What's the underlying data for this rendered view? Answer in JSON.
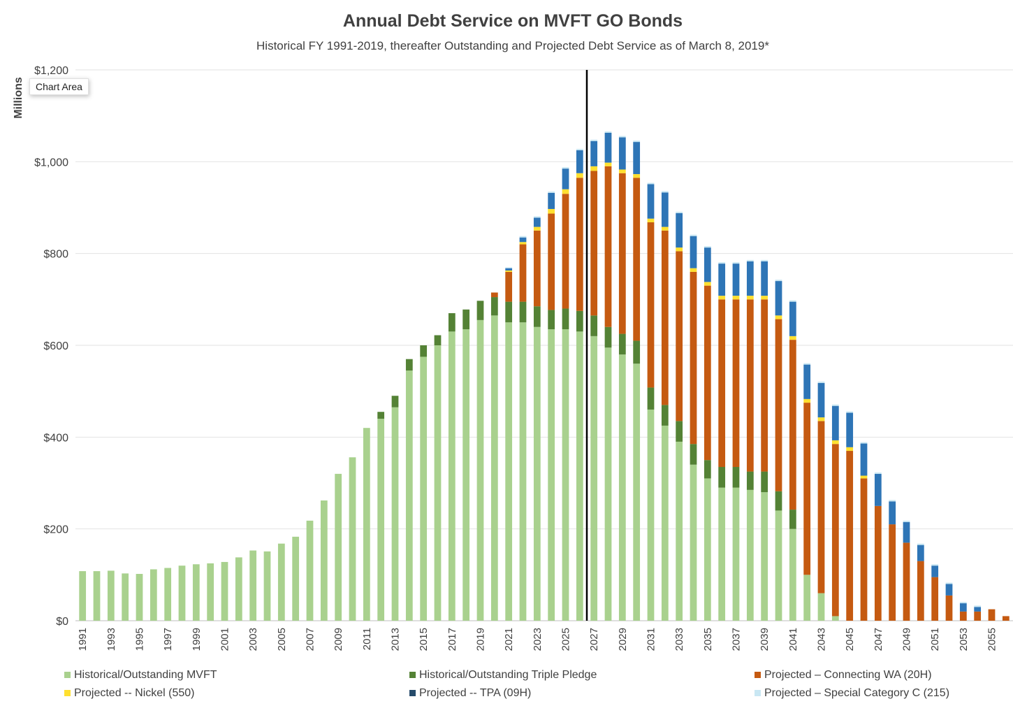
{
  "chart_data": {
    "type": "bar",
    "stacked": true,
    "title": "Annual Debt Service on MVFT GO Bonds",
    "subtitle": "Historical FY 1991-2019, thereafter Outstanding and Projected Debt Service as of March 8, 2019*",
    "ylabel": "Millions",
    "xlabel": "",
    "ylim": [
      0,
      1200
    ],
    "yticks": [
      0,
      200,
      400,
      600,
      800,
      1000,
      1200
    ],
    "ytick_labels": [
      "$0",
      "$200",
      "$400",
      "$600",
      "$800",
      "$1,000",
      "$1,200"
    ],
    "grid": true,
    "legend_position": "bottom",
    "categories": [
      1991,
      1992,
      1993,
      1994,
      1995,
      1996,
      1997,
      1998,
      1999,
      2000,
      2001,
      2002,
      2003,
      2004,
      2005,
      2006,
      2007,
      2008,
      2009,
      2010,
      2011,
      2012,
      2013,
      2014,
      2015,
      2016,
      2017,
      2018,
      2019,
      2020,
      2021,
      2022,
      2023,
      2024,
      2025,
      2026,
      2027,
      2028,
      2029,
      2030,
      2031,
      2032,
      2033,
      2034,
      2035,
      2036,
      2037,
      2038,
      2039,
      2040,
      2041,
      2042,
      2043,
      2044,
      2045,
      2046,
      2047,
      2048,
      2049,
      2050,
      2051,
      2052,
      2053,
      2054,
      2055,
      2056
    ],
    "xtick_labels": [
      "1991",
      "",
      "1993",
      "",
      "1995",
      "",
      "1997",
      "",
      "1999",
      "",
      "2001",
      "",
      "2003",
      "",
      "2005",
      "",
      "2007",
      "",
      "2009",
      "",
      "2011",
      "",
      "2013",
      "",
      "2015",
      "",
      "2017",
      "",
      "2019",
      "",
      "2021",
      "",
      "2023",
      "",
      "2025",
      "",
      "2027",
      "",
      "2029",
      "",
      "2031",
      "",
      "2033",
      "",
      "2035",
      "",
      "2037",
      "",
      "2039",
      "",
      "2041",
      "",
      "2043",
      "",
      "2045",
      "",
      "2047",
      "",
      "2049",
      "",
      "2051",
      "",
      "2053",
      "",
      "2055",
      ""
    ],
    "divider_after": 2026,
    "series": [
      {
        "name": "Historical/Outstanding MVFT",
        "color": "#a9d18e",
        "values": [
          108,
          108,
          109,
          103,
          102,
          112,
          115,
          120,
          123,
          125,
          128,
          138,
          153,
          151,
          168,
          183,
          218,
          262,
          320,
          356,
          420,
          440,
          465,
          545,
          575,
          600,
          630,
          635,
          655,
          665,
          650,
          650,
          640,
          635,
          635,
          630,
          620,
          595,
          580,
          560,
          460,
          425,
          390,
          340,
          310,
          290,
          290,
          285,
          280,
          240,
          200,
          100,
          60,
          10,
          0,
          0,
          0,
          0,
          0,
          0,
          0,
          0,
          0,
          0,
          0,
          0
        ]
      },
      {
        "name": "Historical/Outstanding Triple Pledge",
        "color": "#548235",
        "values": [
          0,
          0,
          0,
          0,
          0,
          0,
          0,
          0,
          0,
          0,
          0,
          0,
          0,
          0,
          0,
          0,
          0,
          0,
          0,
          0,
          0,
          15,
          25,
          25,
          25,
          22,
          40,
          43,
          42,
          40,
          45,
          45,
          45,
          42,
          45,
          45,
          45,
          45,
          45,
          50,
          48,
          45,
          45,
          45,
          40,
          45,
          45,
          40,
          45,
          42,
          42,
          0,
          0,
          0,
          0,
          0,
          0,
          0,
          0,
          0,
          0,
          0,
          0,
          0,
          0,
          0
        ]
      },
      {
        "name": "Projected -- Connecting WA (20H)",
        "color": "#c55a11",
        "values": [
          0,
          0,
          0,
          0,
          0,
          0,
          0,
          0,
          0,
          0,
          0,
          0,
          0,
          0,
          0,
          0,
          0,
          0,
          0,
          0,
          0,
          0,
          0,
          0,
          0,
          0,
          0,
          0,
          0,
          10,
          65,
          125,
          165,
          210,
          250,
          290,
          315,
          350,
          350,
          355,
          360,
          380,
          370,
          375,
          380,
          365,
          365,
          375,
          375,
          375,
          370,
          375,
          375,
          375,
          370,
          310,
          250,
          210,
          170,
          130,
          95,
          55,
          20,
          20,
          25,
          10
        ]
      },
      {
        "name": "Projected -- Nickel (550)",
        "color": "#ffe030",
        "values": [
          0,
          0,
          0,
          0,
          0,
          0,
          0,
          0,
          0,
          0,
          0,
          0,
          0,
          0,
          0,
          0,
          0,
          0,
          0,
          0,
          0,
          0,
          0,
          0,
          0,
          0,
          0,
          0,
          0,
          0,
          3,
          5,
          8,
          10,
          10,
          10,
          10,
          8,
          8,
          8,
          8,
          8,
          8,
          8,
          8,
          8,
          8,
          8,
          8,
          8,
          8,
          8,
          8,
          8,
          8,
          6,
          0,
          0,
          0,
          0,
          0,
          0,
          0,
          0,
          0,
          0
        ]
      },
      {
        "name": "Projected -- TPA (09H)",
        "color": "#2e75b6",
        "values": [
          0,
          0,
          0,
          0,
          0,
          0,
          0,
          0,
          0,
          0,
          0,
          0,
          0,
          0,
          0,
          0,
          0,
          0,
          0,
          0,
          0,
          0,
          0,
          0,
          0,
          0,
          0,
          0,
          0,
          0,
          5,
          10,
          20,
          35,
          45,
          50,
          55,
          65,
          70,
          70,
          75,
          75,
          75,
          70,
          75,
          70,
          70,
          75,
          75,
          75,
          75,
          75,
          75,
          75,
          75,
          70,
          70,
          50,
          45,
          35,
          25,
          25,
          18,
          10,
          0,
          0
        ]
      },
      {
        "name": "Projected -- Special Category C (215)",
        "color": "#c9e7f3",
        "values": [
          0,
          0,
          0,
          0,
          0,
          0,
          0,
          0,
          0,
          0,
          0,
          0,
          0,
          0,
          0,
          0,
          0,
          0,
          0,
          0,
          0,
          0,
          0,
          0,
          0,
          0,
          0,
          0,
          0,
          0,
          2,
          3,
          3,
          3,
          3,
          3,
          3,
          3,
          3,
          3,
          3,
          3,
          3,
          3,
          3,
          3,
          3,
          3,
          3,
          3,
          3,
          3,
          3,
          3,
          3,
          3,
          3,
          3,
          3,
          3,
          3,
          3,
          3,
          3,
          0,
          0
        ]
      }
    ]
  },
  "tooltip_label": "Chart Area",
  "legend": [
    {
      "label": "Historical/Outstanding MVFT",
      "color": "#a9d18e"
    },
    {
      "label": "Historical/Outstanding Triple Pledge",
      "color": "#548235"
    },
    {
      "label": "Projected – Connecting WA (20H)",
      "color": "#c55a11"
    },
    {
      "label": "Projected -- Nickel (550)",
      "color": "#ffe030"
    },
    {
      "label": "Projected -- TPA (09H)",
      "color": "#264b6b"
    },
    {
      "label": "Projected – Special Category C (215)",
      "color": "#c9e7f3"
    }
  ]
}
